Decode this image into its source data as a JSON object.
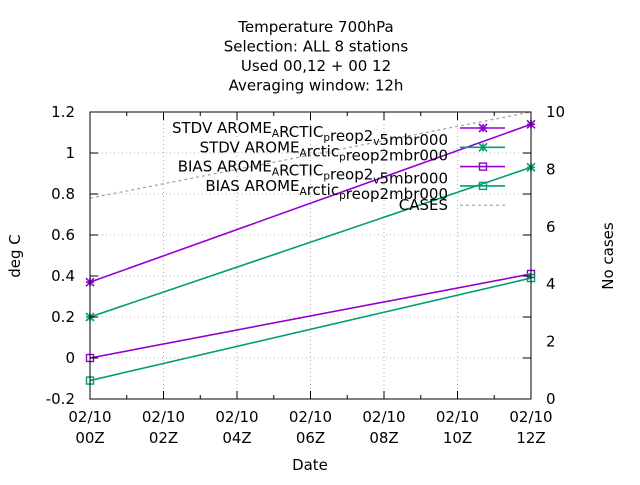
{
  "chart_data": {
    "type": "line",
    "title_lines": [
      "Temperature 700hPa",
      "Selection: ALL      8 stations",
      "Used  00,12  + 00 12",
      "Averaging window: 12h"
    ],
    "xlabel": "Date",
    "ylabel": "deg C",
    "y2label": "No cases",
    "x_ticks": [
      {
        "line1": "02/10",
        "line2": "00Z",
        "hour": 0
      },
      {
        "line1": "02/10",
        "line2": "02Z",
        "hour": 2
      },
      {
        "line1": "02/10",
        "line2": "04Z",
        "hour": 4
      },
      {
        "line1": "02/10",
        "line2": "06Z",
        "hour": 6
      },
      {
        "line1": "02/10",
        "line2": "08Z",
        "hour": 8
      },
      {
        "line1": "02/10",
        "line2": "10Z",
        "hour": 10
      },
      {
        "line1": "02/10",
        "line2": "12Z",
        "hour": 12
      }
    ],
    "xlim": [
      0,
      12
    ],
    "ylim": [
      -0.2,
      1.2
    ],
    "y_ticks": [
      "-0.2",
      "0",
      "0.2",
      "0.4",
      "0.6",
      "0.8",
      "1",
      "1.2"
    ],
    "y2lim": [
      0,
      10
    ],
    "y2_ticks": [
      "0",
      "2",
      "4",
      "6",
      "8",
      "10"
    ],
    "grid": true,
    "legend_position": "top-right",
    "series": [
      {
        "name_parts": [
          [
            "STDV AROME",
            ""
          ],
          [
            "A",
            "sub"
          ],
          [
            "RCTIC",
            ""
          ],
          [
            "p",
            "sub"
          ],
          [
            "reop2",
            ""
          ],
          [
            "v",
            "sub"
          ],
          [
            "5mbr000",
            ""
          ]
        ],
        "color": "#9400d3",
        "marker": "star",
        "axis": "y",
        "x": [
          0,
          12
        ],
        "y": [
          0.37,
          1.14
        ]
      },
      {
        "name_parts": [
          [
            "STDV AROME",
            ""
          ],
          [
            "A",
            "sub"
          ],
          [
            "rctic",
            ""
          ],
          [
            "p",
            "sub"
          ],
          [
            "reop2mbr000",
            ""
          ]
        ],
        "color": "#009e73",
        "marker": "star",
        "axis": "y",
        "x": [
          0,
          12
        ],
        "y": [
          0.2,
          0.93
        ]
      },
      {
        "name_parts": [
          [
            "BIAS AROME",
            ""
          ],
          [
            "A",
            "sub"
          ],
          [
            "RCTIC",
            ""
          ],
          [
            "p",
            "sub"
          ],
          [
            "reop2",
            ""
          ],
          [
            "v",
            "sub"
          ],
          [
            "5mbr000",
            ""
          ]
        ],
        "color": "#9400d3",
        "marker": "square",
        "axis": "y",
        "x": [
          0,
          12
        ],
        "y": [
          0.0,
          0.41
        ]
      },
      {
        "name_parts": [
          [
            "BIAS AROME",
            ""
          ],
          [
            "A",
            "sub"
          ],
          [
            "rctic",
            ""
          ],
          [
            "p",
            "sub"
          ],
          [
            "reop2mbr000",
            ""
          ]
        ],
        "color": "#009e73",
        "marker": "square",
        "axis": "y",
        "x": [
          0,
          12
        ],
        "y": [
          -0.11,
          0.39
        ]
      },
      {
        "name_parts": [
          [
            "CASES",
            ""
          ]
        ],
        "color": "#a0a0a0",
        "marker": "none",
        "dashed": true,
        "axis": "y2",
        "x": [
          0,
          12
        ],
        "y": [
          7,
          10
        ]
      }
    ]
  }
}
